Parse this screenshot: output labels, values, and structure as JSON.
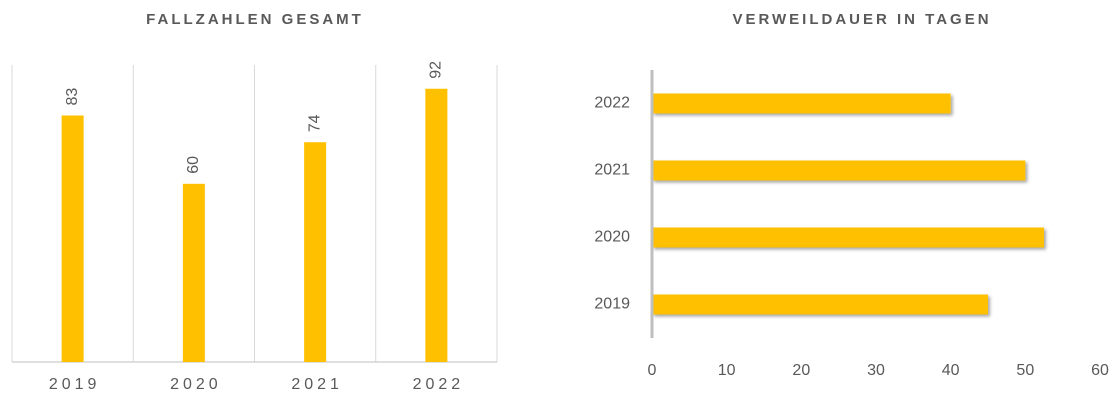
{
  "chart_data": [
    {
      "type": "bar",
      "title": "FALLZAHLEN GESAMT",
      "categories": [
        "2019",
        "2020",
        "2021",
        "2022"
      ],
      "values": [
        83,
        60,
        74,
        92
      ],
      "color": "#ffc000",
      "ylim": [
        0,
        100
      ]
    },
    {
      "type": "barh",
      "title": "VERWEILDAUER IN TAGEN",
      "categories": [
        "2019",
        "2020",
        "2021",
        "2022"
      ],
      "values": [
        45,
        52.5,
        50,
        40
      ],
      "color": "#ffc000",
      "xlim": [
        0,
        60
      ],
      "xticks": [
        0,
        10,
        20,
        30,
        40,
        50,
        60
      ]
    }
  ]
}
